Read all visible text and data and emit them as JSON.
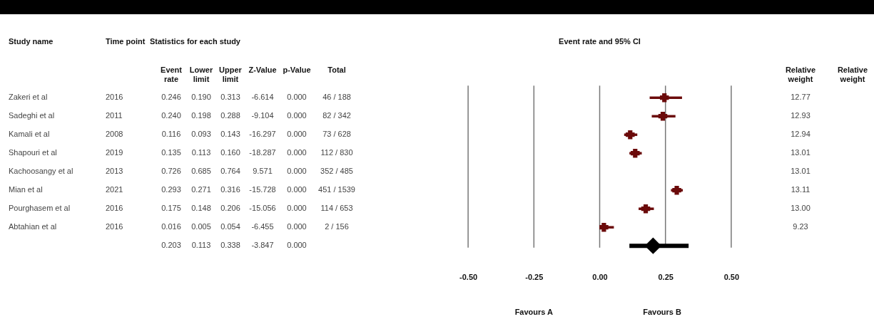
{
  "chart_data": [
    {
      "type": "other",
      "title": "Statistics for each study",
      "ylabel": "Study name",
      "categories": [
        "Time point",
        "Event rate",
        "Lower limit",
        "Upper limit",
        "Z-Value",
        "p-Value",
        "Total"
      ],
      "y_categories": [
        "Zakeri et al",
        "Sadeghi et al",
        "Kamali et al",
        "Shapouri et al",
        "Kachoosangy et al",
        "Mian et al",
        "Pourghasem et al",
        "Abtahian et al",
        null
      ],
      "cell_labels": [
        [
          "2016",
          "0.246",
          "0.190",
          "0.313",
          "-6.614",
          "0.000",
          "46 / 188"
        ],
        [
          "2011",
          "0.240",
          "0.198",
          "0.288",
          "-9.104",
          "0.000",
          "82 / 342"
        ],
        [
          "2008",
          "0.116",
          "0.093",
          "0.143",
          "-16.297",
          "0.000",
          "73 / 628"
        ],
        [
          "2019",
          "0.135",
          "0.113",
          "0.160",
          "-18.287",
          "0.000",
          "112 / 830"
        ],
        [
          "2013",
          "0.726",
          "0.685",
          "0.764",
          "9.571",
          "0.000",
          "352 / 485"
        ],
        [
          "2021",
          "0.293",
          "0.271",
          "0.316",
          "-15.728",
          "0.000",
          "451 / 1539"
        ],
        [
          "2016",
          "0.175",
          "0.148",
          "0.206",
          "-15.056",
          "0.000",
          "114 / 653"
        ],
        [
          "2016",
          "0.016",
          "0.005",
          "0.054",
          "-6.455",
          "0.000",
          "2 / 156"
        ],
        [
          null,
          "0.203",
          "0.113",
          "0.338",
          "-3.847",
          "0.000",
          null
        ]
      ]
    },
    {
      "type": "scatter",
      "orientation": "horizontal",
      "title": "Event rate and 95% CI",
      "categories": [
        null,
        null,
        null,
        null,
        null,
        null,
        null,
        null,
        null
      ],
      "series": [
        {
          "color": "#6b0a0a",
          "marker": "cross",
          "values": [
            0.246,
            0.24,
            0.116,
            0.135,
            null,
            0.293,
            0.175,
            0.016,
            null
          ],
          "errors": [
            [
              0.19,
              0.313
            ],
            [
              0.198,
              0.288
            ],
            [
              0.093,
              0.143
            ],
            [
              0.113,
              0.16
            ],
            null,
            [
              0.271,
              0.316
            ],
            [
              0.148,
              0.206
            ],
            [
              0.005,
              0.054
            ],
            null
          ]
        },
        {
          "color": "#000000",
          "marker": "diamond",
          "values": [
            null,
            null,
            null,
            null,
            null,
            null,
            null,
            null,
            0.203
          ],
          "errors": [
            null,
            null,
            null,
            null,
            null,
            null,
            null,
            null,
            [
              0.113,
              0.338
            ]
          ]
        }
      ],
      "xlim": [
        -0.625,
        0.625
      ],
      "xticks": [
        {
          "value": -0.5,
          "label": "-0.50"
        },
        {
          "value": -0.25,
          "label": "-0.25"
        },
        {
          "value": 0,
          "label": "0.00"
        },
        {
          "value": 0.25,
          "label": "0.25"
        },
        {
          "value": 0.5,
          "label": "0.50"
        }
      ],
      "grid": "x",
      "tick_labels": "x",
      "annotations": [
        "Favours A",
        "Favours B"
      ]
    },
    {
      "type": "other",
      "categories": [
        "Relative weight",
        "Relative weight"
      ],
      "cell_labels": [
        [
          "12.77",
          null
        ],
        [
          "12.93",
          null
        ],
        [
          "12.94",
          null
        ],
        [
          "13.01",
          null
        ],
        [
          "13.01",
          null
        ],
        [
          "13.11",
          null
        ],
        [
          "13.00",
          null
        ],
        [
          "9.23",
          null
        ],
        [
          null,
          null
        ]
      ]
    }
  ]
}
